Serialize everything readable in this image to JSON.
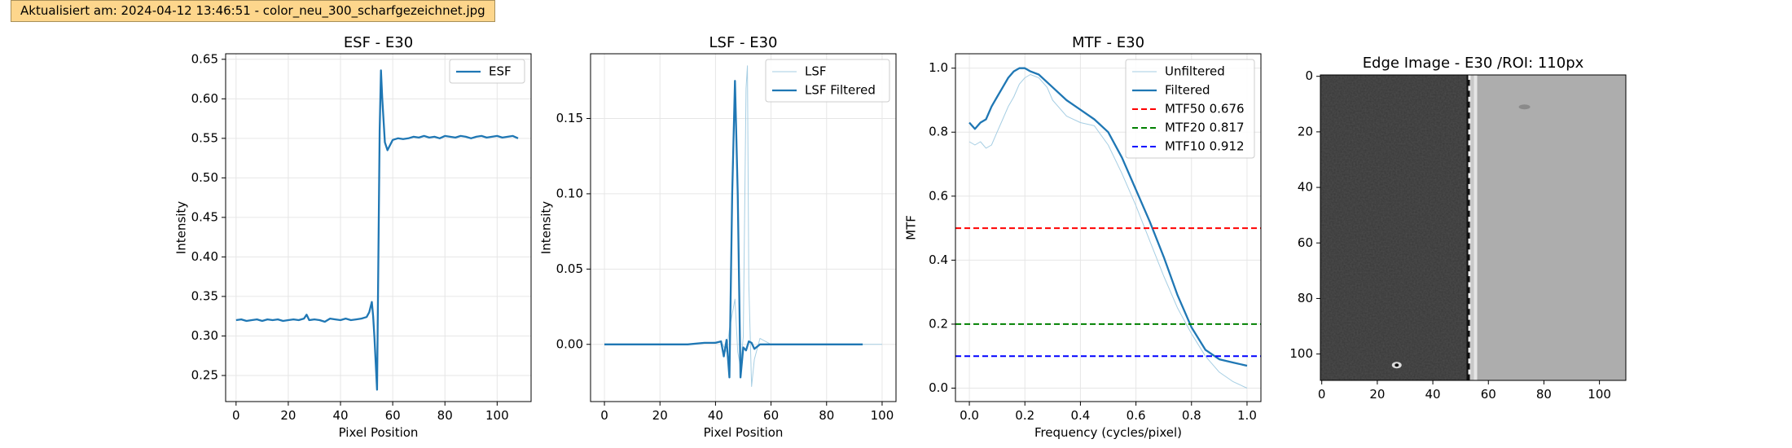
{
  "status": {
    "banner_text": "Aktualisiert am: 2024-04-12 13:46:51 - color_neu_300_scharfgezeichnet.jpg"
  },
  "colors": {
    "line_blue": "#1f77b4",
    "light_blue": "#a6cee3",
    "mtf50": "#ff0000",
    "mtf20": "#008000",
    "mtf10": "#0000ff",
    "banner_bg": "#fdd68c"
  },
  "chart_data": [
    {
      "type": "line",
      "title": "ESF - E30",
      "xlabel": "Pixel Position",
      "ylabel": "Intensity",
      "xlim": [
        -4,
        113
      ],
      "ylim": [
        0.217,
        0.657
      ],
      "xticks": [
        0,
        20,
        40,
        60,
        80,
        100
      ],
      "yticks": [
        0.25,
        0.3,
        0.35,
        0.4,
        0.45,
        0.5,
        0.55,
        0.6,
        0.65
      ],
      "ytick_labels": [
        "0.25",
        "0.30",
        "0.35",
        "0.40",
        "0.45",
        "0.50",
        "0.55",
        "0.60",
        "0.65"
      ],
      "grid": true,
      "legend_position": "upper right",
      "series": [
        {
          "name": "ESF",
          "x": [
            0,
            2,
            4,
            6,
            8,
            10,
            12,
            14,
            16,
            18,
            20,
            22,
            24,
            26,
            27,
            28,
            30,
            32,
            34,
            36,
            38,
            40,
            42,
            44,
            46,
            48,
            50,
            51,
            52,
            52.5,
            53,
            54,
            55,
            55.5,
            56,
            57,
            58,
            60,
            62,
            64,
            66,
            68,
            70,
            72,
            74,
            76,
            78,
            80,
            82,
            84,
            86,
            88,
            90,
            92,
            94,
            96,
            98,
            100,
            102,
            104,
            106,
            108
          ],
          "y": [
            0.32,
            0.321,
            0.319,
            0.32,
            0.321,
            0.319,
            0.321,
            0.32,
            0.321,
            0.319,
            0.32,
            0.321,
            0.32,
            0.322,
            0.327,
            0.32,
            0.321,
            0.32,
            0.318,
            0.322,
            0.321,
            0.32,
            0.322,
            0.32,
            0.321,
            0.322,
            0.324,
            0.33,
            0.343,
            0.325,
            0.298,
            0.232,
            0.56,
            0.636,
            0.6,
            0.545,
            0.535,
            0.548,
            0.55,
            0.549,
            0.55,
            0.552,
            0.551,
            0.553,
            0.551,
            0.552,
            0.55,
            0.553,
            0.552,
            0.551,
            0.553,
            0.552,
            0.55,
            0.552,
            0.553,
            0.551,
            0.552,
            0.553,
            0.551,
            0.552,
            0.553,
            0.55
          ]
        }
      ]
    },
    {
      "type": "line",
      "title": "LSF - E30",
      "xlabel": "Pixel Position",
      "ylabel": "Intensity",
      "xlim": [
        -5,
        105
      ],
      "ylim": [
        -0.038,
        0.193
      ],
      "xticks": [
        0,
        20,
        40,
        60,
        80,
        100
      ],
      "yticks": [
        0.0,
        0.05,
        0.1,
        0.15
      ],
      "ytick_labels": [
        "0.00",
        "0.05",
        "0.10",
        "0.15"
      ],
      "grid": true,
      "legend_position": "upper right",
      "series": [
        {
          "name": "LSF",
          "x": [
            0,
            10,
            20,
            30,
            38,
            42,
            44,
            45,
            46,
            47,
            48,
            49,
            50,
            51,
            51.5,
            52,
            53,
            54,
            56,
            60,
            70,
            80,
            90,
            100
          ],
          "y": [
            0,
            0,
            0,
            0,
            0.001,
            0.002,
            -0.005,
            0.01,
            0.02,
            0.03,
            -0.005,
            -0.015,
            0.005,
            0.17,
            0.185,
            0.04,
            -0.028,
            -0.01,
            0.004,
            0,
            0,
            0,
            0,
            0
          ],
          "style": "thin light"
        },
        {
          "name": "LSF Filtered",
          "x": [
            0,
            10,
            20,
            30,
            36,
            40,
            42,
            43,
            44,
            45,
            46,
            47,
            48,
            49,
            50,
            51,
            52,
            53,
            54,
            56,
            60,
            70,
            80,
            93
          ],
          "y": [
            0,
            0,
            0,
            0,
            0.001,
            0.001,
            0.002,
            -0.008,
            0.003,
            -0.022,
            0.1,
            0.175,
            0.1,
            -0.022,
            -0.002,
            -0.004,
            0.002,
            0.001,
            -0.003,
            0,
            0,
            0,
            0,
            0
          ],
          "style": "thick"
        }
      ]
    },
    {
      "type": "line",
      "title": "MTF - E30",
      "xlabel": "Frequency (cycles/pixel)",
      "ylabel": "MTF",
      "xlim": [
        -0.05,
        1.05
      ],
      "ylim": [
        -0.042,
        1.045
      ],
      "xticks": [
        0.0,
        0.2,
        0.4,
        0.6,
        0.8,
        1.0
      ],
      "xtick_labels": [
        "0.0",
        "0.2",
        "0.4",
        "0.6",
        "0.8",
        "1.0"
      ],
      "yticks": [
        0.0,
        0.2,
        0.4,
        0.6,
        0.8,
        1.0
      ],
      "ytick_labels": [
        "0.0",
        "0.2",
        "0.4",
        "0.6",
        "0.8",
        "1.0"
      ],
      "grid": true,
      "legend_position": "upper right",
      "series": [
        {
          "name": "Unfiltered",
          "x": [
            0,
            0.02,
            0.04,
            0.06,
            0.08,
            0.1,
            0.12,
            0.14,
            0.16,
            0.18,
            0.2,
            0.22,
            0.25,
            0.28,
            0.3,
            0.35,
            0.4,
            0.45,
            0.5,
            0.55,
            0.6,
            0.65,
            0.7,
            0.75,
            0.8,
            0.85,
            0.9,
            0.95,
            1.0
          ],
          "y": [
            0.77,
            0.76,
            0.77,
            0.75,
            0.76,
            0.8,
            0.84,
            0.88,
            0.91,
            0.95,
            0.97,
            0.98,
            0.97,
            0.94,
            0.9,
            0.85,
            0.83,
            0.82,
            0.76,
            0.67,
            0.57,
            0.46,
            0.35,
            0.25,
            0.17,
            0.1,
            0.05,
            0.02,
            0.0
          ],
          "style": "thin light"
        },
        {
          "name": "Filtered",
          "x": [
            0,
            0.02,
            0.04,
            0.06,
            0.08,
            0.1,
            0.12,
            0.14,
            0.16,
            0.18,
            0.2,
            0.22,
            0.25,
            0.3,
            0.35,
            0.4,
            0.45,
            0.5,
            0.55,
            0.6,
            0.65,
            0.7,
            0.75,
            0.8,
            0.85,
            0.9,
            0.95,
            1.0
          ],
          "y": [
            0.83,
            0.81,
            0.83,
            0.84,
            0.88,
            0.91,
            0.94,
            0.97,
            0.99,
            1.0,
            1.0,
            0.99,
            0.98,
            0.94,
            0.9,
            0.87,
            0.84,
            0.8,
            0.72,
            0.62,
            0.52,
            0.41,
            0.29,
            0.19,
            0.12,
            0.09,
            0.08,
            0.07
          ],
          "style": "thick"
        },
        {
          "name": "MTF50 0.676",
          "hline": 0.5,
          "color_key": "mtf50"
        },
        {
          "name": "MTF20 0.817",
          "hline": 0.2,
          "color_key": "mtf20"
        },
        {
          "name": "MTF10 0.912",
          "hline": 0.1,
          "color_key": "mtf10"
        }
      ]
    },
    {
      "type": "heatmap",
      "title": "Edge Image - E30 /ROI: 110px",
      "xlim": [
        -0.5,
        109.5
      ],
      "ylim": [
        109.5,
        -0.5
      ],
      "xticks": [
        0,
        20,
        40,
        60,
        80,
        100
      ],
      "yticks": [
        0,
        20,
        40,
        60,
        80,
        100
      ],
      "colormap": "gray",
      "edge_column": 54.5,
      "left_level": 0.22,
      "right_level": 0.68
    }
  ]
}
